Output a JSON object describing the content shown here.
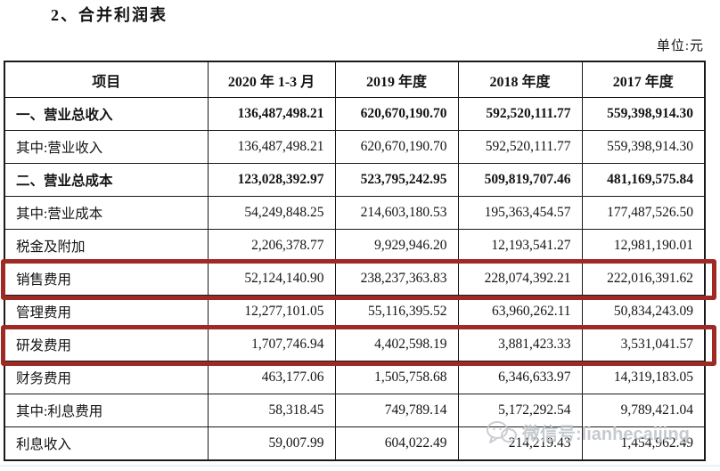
{
  "page": {
    "title": "2、合并利润表",
    "unit_label": "单位:元"
  },
  "table": {
    "columns": [
      "项目",
      "2020 年 1-3 月",
      "2019 年度",
      "2018 年度",
      "2017 年度"
    ],
    "rows": [
      {
        "label": "一、营业总收入",
        "values": [
          "136,487,498.21",
          "620,670,190.70",
          "592,520,111.77",
          "559,398,914.30"
        ],
        "bold": true,
        "highlight": false
      },
      {
        "label": "其中:营业收入",
        "values": [
          "136,487,498.21",
          "620,670,190.70",
          "592,520,111.77",
          "559,398,914.30"
        ],
        "bold": false,
        "highlight": false
      },
      {
        "label": "二、营业总成本",
        "values": [
          "123,028,392.97",
          "523,795,242.95",
          "509,819,707.46",
          "481,169,575.84"
        ],
        "bold": true,
        "highlight": false
      },
      {
        "label": "其中:营业成本",
        "values": [
          "54,249,848.25",
          "214,603,180.53",
          "195,363,454.57",
          "177,487,526.50"
        ],
        "bold": false,
        "highlight": false
      },
      {
        "label": "税金及附加",
        "values": [
          "2,206,378.77",
          "9,929,946.20",
          "12,193,541.27",
          "12,981,190.01"
        ],
        "bold": false,
        "highlight": false
      },
      {
        "label": "销售费用",
        "values": [
          "52,124,140.90",
          "238,237,363.83",
          "228,074,392.21",
          "222,016,391.62"
        ],
        "bold": false,
        "highlight": true
      },
      {
        "label": "管理费用",
        "values": [
          "12,277,101.05",
          "55,116,395.52",
          "63,960,262.11",
          "50,834,243.09"
        ],
        "bold": false,
        "highlight": false
      },
      {
        "label": "研发费用",
        "values": [
          "1,707,746.94",
          "4,402,598.19",
          "3,881,423.33",
          "3,531,041.57"
        ],
        "bold": false,
        "highlight": true
      },
      {
        "label": "财务费用",
        "values": [
          "463,177.06",
          "1,505,758.68",
          "6,346,633.97",
          "14,319,183.05"
        ],
        "bold": false,
        "highlight": false
      },
      {
        "label": "其中:利息费用",
        "values": [
          "58,318.45",
          "749,789.14",
          "5,172,292.54",
          "9,789,421.04"
        ],
        "bold": false,
        "highlight": false
      },
      {
        "label": "利息收入",
        "values": [
          "59,007.99",
          "604,022.49",
          "214,219.43",
          "1,454,962.49"
        ],
        "bold": false,
        "highlight": false
      }
    ]
  },
  "highlight_color": "#9f2a24",
  "watermark": {
    "icon": "wechat-icon",
    "text": "微信号:lianhecaijing"
  }
}
